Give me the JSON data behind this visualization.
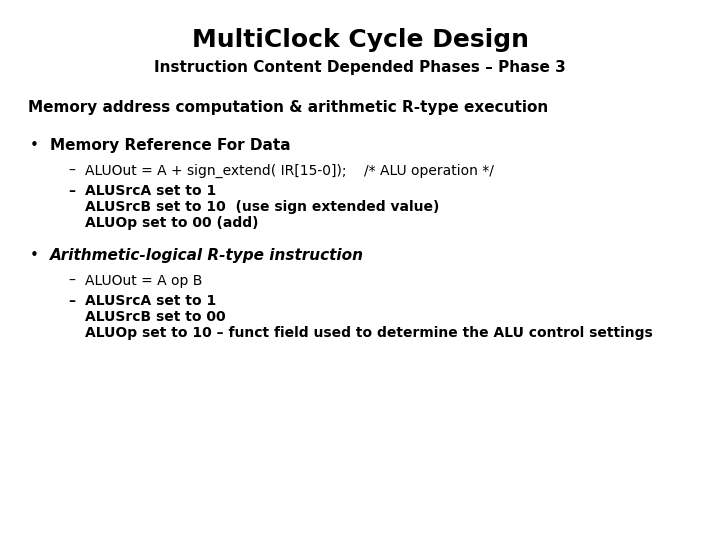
{
  "title": "MultiClock Cycle Design",
  "subtitle": "Instruction Content Depended Phases – Phase 3",
  "section_header": "Memory address computation & arithmetic R-type execution",
  "bullet1_header": "Memory Reference For Data",
  "bullet1_sub1": "ALUOut = A + sign_extend( IR[15-0]);    /* ALU operation */",
  "bullet1_sub2_line1": "ALUSrcA set to 1",
  "bullet1_sub2_line2": "ALUSrcB set to 10  (use sign extended value)",
  "bullet1_sub2_line3": "ALUOp set to 00 (add)",
  "bullet2_header": "Arithmetic-logical R-type instruction",
  "bullet2_sub1": "ALUOut = A op B",
  "bullet2_sub2_line1": "ALUSrcA set to 1",
  "bullet2_sub2_line2": "ALUSrcB set to 00",
  "bullet2_sub2_line3": "ALUOp set to 10 – funct field used to determine the ALU control settings",
  "bg_color": "#ffffff",
  "text_color": "#000000",
  "title_fontsize": 18,
  "subtitle_fontsize": 11,
  "section_fontsize": 11,
  "body_fontsize": 10
}
